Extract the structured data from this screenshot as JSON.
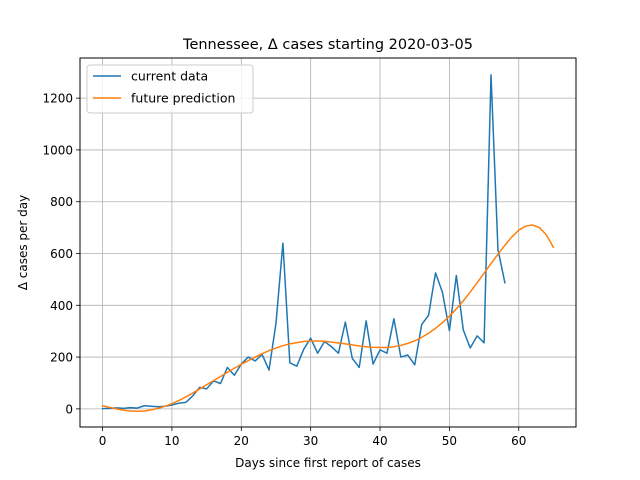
{
  "chart_data": {
    "type": "line",
    "title": "Tennessee, Δ cases starting 2020-03-05",
    "xlabel": "Days since first report of cases",
    "ylabel": "Δ cases per day",
    "xlim": [
      -3.25,
      68.25
    ],
    "ylim": [
      -70,
      1355
    ],
    "xticks": [
      0,
      10,
      20,
      30,
      40,
      50,
      60
    ],
    "yticks": [
      0,
      200,
      400,
      600,
      800,
      1000,
      1200
    ],
    "grid": true,
    "legend_position": "top-left",
    "series": [
      {
        "name": "current data",
        "color": "#1f77b4",
        "x": [
          0,
          1,
          2,
          3,
          4,
          5,
          6,
          7,
          8,
          9,
          10,
          11,
          12,
          13,
          14,
          15,
          16,
          17,
          18,
          19,
          20,
          21,
          22,
          23,
          24,
          25,
          26,
          27,
          28,
          29,
          30,
          31,
          32,
          33,
          34,
          35,
          36,
          37,
          38,
          39,
          40,
          41,
          42,
          43,
          44,
          45,
          46,
          47,
          48,
          49,
          50,
          51,
          52,
          53,
          54,
          55,
          56,
          57,
          58
        ],
        "values": [
          1,
          2,
          4,
          2,
          5,
          3,
          12,
          10,
          8,
          10,
          15,
          22,
          25,
          50,
          83,
          77,
          108,
          98,
          160,
          130,
          173,
          200,
          185,
          210,
          150,
          330,
          640,
          178,
          165,
          230,
          273,
          215,
          260,
          240,
          215,
          335,
          195,
          160,
          340,
          173,
          228,
          215,
          348,
          200,
          208,
          170,
          325,
          362,
          525,
          450,
          302,
          515,
          305,
          235,
          282,
          255,
          1290,
          615,
          487
        ]
      },
      {
        "name": "future prediction",
        "color": "#ff7f0e",
        "x": [
          0,
          1,
          2,
          3,
          4,
          5,
          6,
          7,
          8,
          9,
          10,
          11,
          12,
          13,
          14,
          15,
          16,
          17,
          18,
          19,
          20,
          21,
          22,
          23,
          24,
          25,
          26,
          27,
          28,
          29,
          30,
          31,
          32,
          33,
          34,
          35,
          36,
          37,
          38,
          39,
          40,
          41,
          42,
          43,
          44,
          45,
          46,
          47,
          48,
          49,
          50,
          51,
          52,
          53,
          54,
          55,
          56,
          57,
          58,
          59,
          60,
          61,
          62,
          63,
          64,
          65
        ],
        "values": [
          12,
          6,
          0,
          -5,
          -8,
          -9,
          -8,
          -4,
          2,
          10,
          20,
          32,
          46,
          61,
          77,
          93,
          109,
          125,
          141,
          157,
          172,
          186,
          200,
          213,
          225,
          235,
          244,
          251,
          256,
          260,
          262,
          262,
          261,
          258,
          255,
          251,
          247,
          243,
          240,
          238,
          237,
          237,
          240,
          245,
          253,
          263,
          276,
          292,
          311,
          333,
          358,
          386,
          417,
          451,
          487,
          524,
          561,
          597,
          632,
          664,
          690,
          706,
          710,
          700,
          671,
          624
        ]
      }
    ]
  }
}
